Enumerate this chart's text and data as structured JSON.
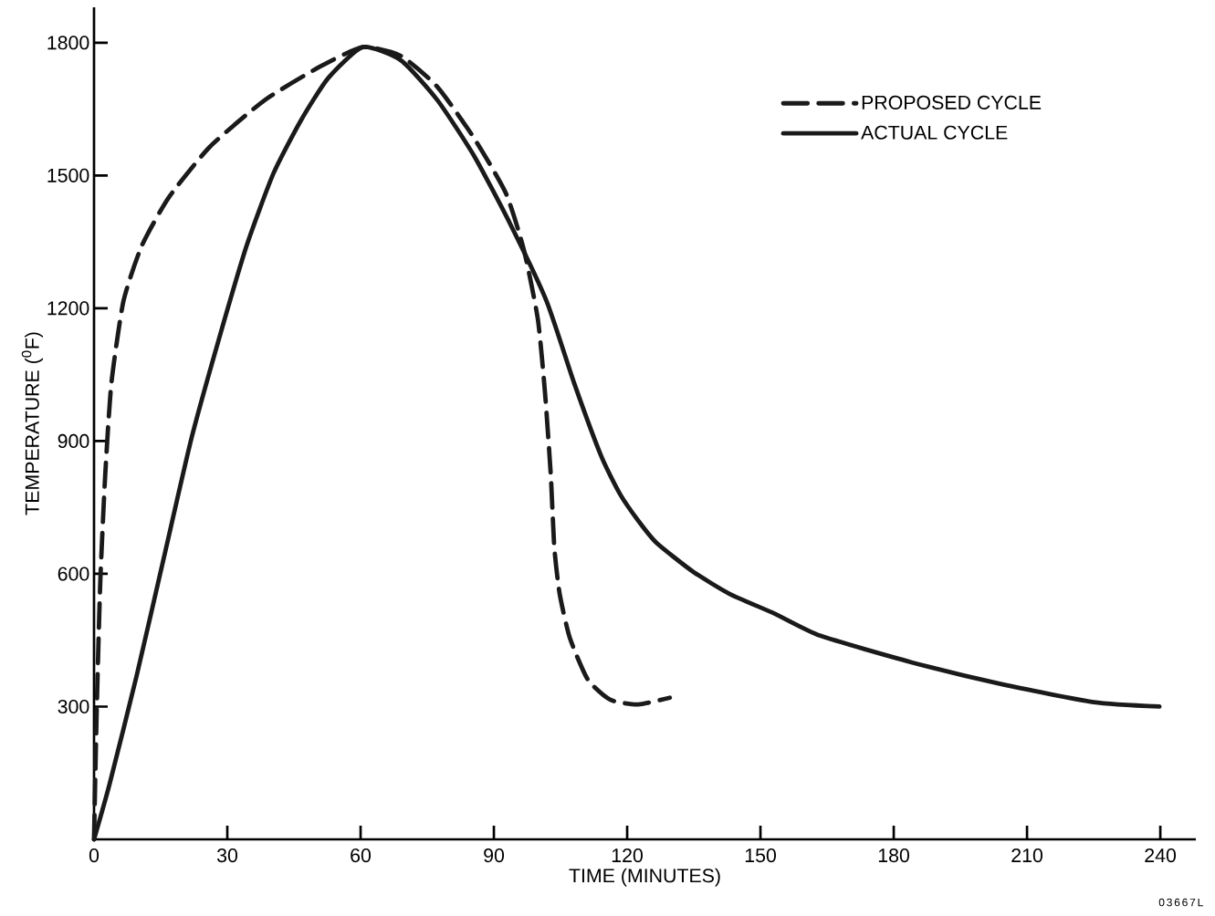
{
  "chart_data": {
    "type": "line",
    "xlabel": "TIME (MINUTES)",
    "ylabel": "TEMPERATURE ($^{0}$F)",
    "xlim": [
      0,
      248
    ],
    "ylim": [
      0,
      1880
    ],
    "xticks": [
      0,
      30,
      60,
      90,
      120,
      150,
      180,
      210,
      240
    ],
    "yticks": [
      300,
      600,
      900,
      1200,
      1500,
      1800
    ],
    "legend": "top right",
    "annotations": [
      "03667L"
    ],
    "series": [
      {
        "name": "PROPOSED CYCLE",
        "color": "#1a1a1a",
        "line_style": "dashed",
        "x": [
          0,
          0.6,
          1.4,
          2.5,
          3.9,
          6.6,
          10.7,
          16.8,
          26.1,
          38.4,
          50.7,
          60.5,
          69.1,
          77.3,
          85.5,
          92.7,
          96.8,
          99.9,
          101.5,
          102.8,
          103.6,
          104.8,
          107.1,
          111.2,
          116.3,
          122.5,
          129.6
        ],
        "values": [
          0,
          290,
          580,
          820,
          1030,
          1215,
          1340,
          1450,
          1565,
          1670,
          1745,
          1790,
          1770,
          1700,
          1585,
          1460,
          1330,
          1175,
          1010,
          825,
          660,
          555,
          455,
          360,
          315,
          305,
          320
        ]
      },
      {
        "name": "ACTUAL CYCLE",
        "color": "#1a1a1a",
        "line_style": "solid",
        "x": [
          0,
          3.5,
          9.6,
          15.8,
          21.9,
          28.1,
          34.3,
          40.4,
          46.6,
          52.7,
          60.5,
          69.1,
          77.3,
          85.5,
          93.7,
          101.9,
          108.1,
          114.2,
          118.4,
          122.5,
          126.6,
          134.8,
          143,
          153.2,
          163.5,
          184,
          204.5,
          225,
          239.8
        ],
        "values": [
          0,
          125,
          370,
          640,
          905,
          1130,
          1340,
          1505,
          1625,
          1720,
          1790,
          1760,
          1670,
          1545,
          1390,
          1215,
          1030,
          865,
          780,
          720,
          670,
          605,
          555,
          510,
          460,
          400,
          350,
          310,
          300
        ]
      }
    ]
  }
}
